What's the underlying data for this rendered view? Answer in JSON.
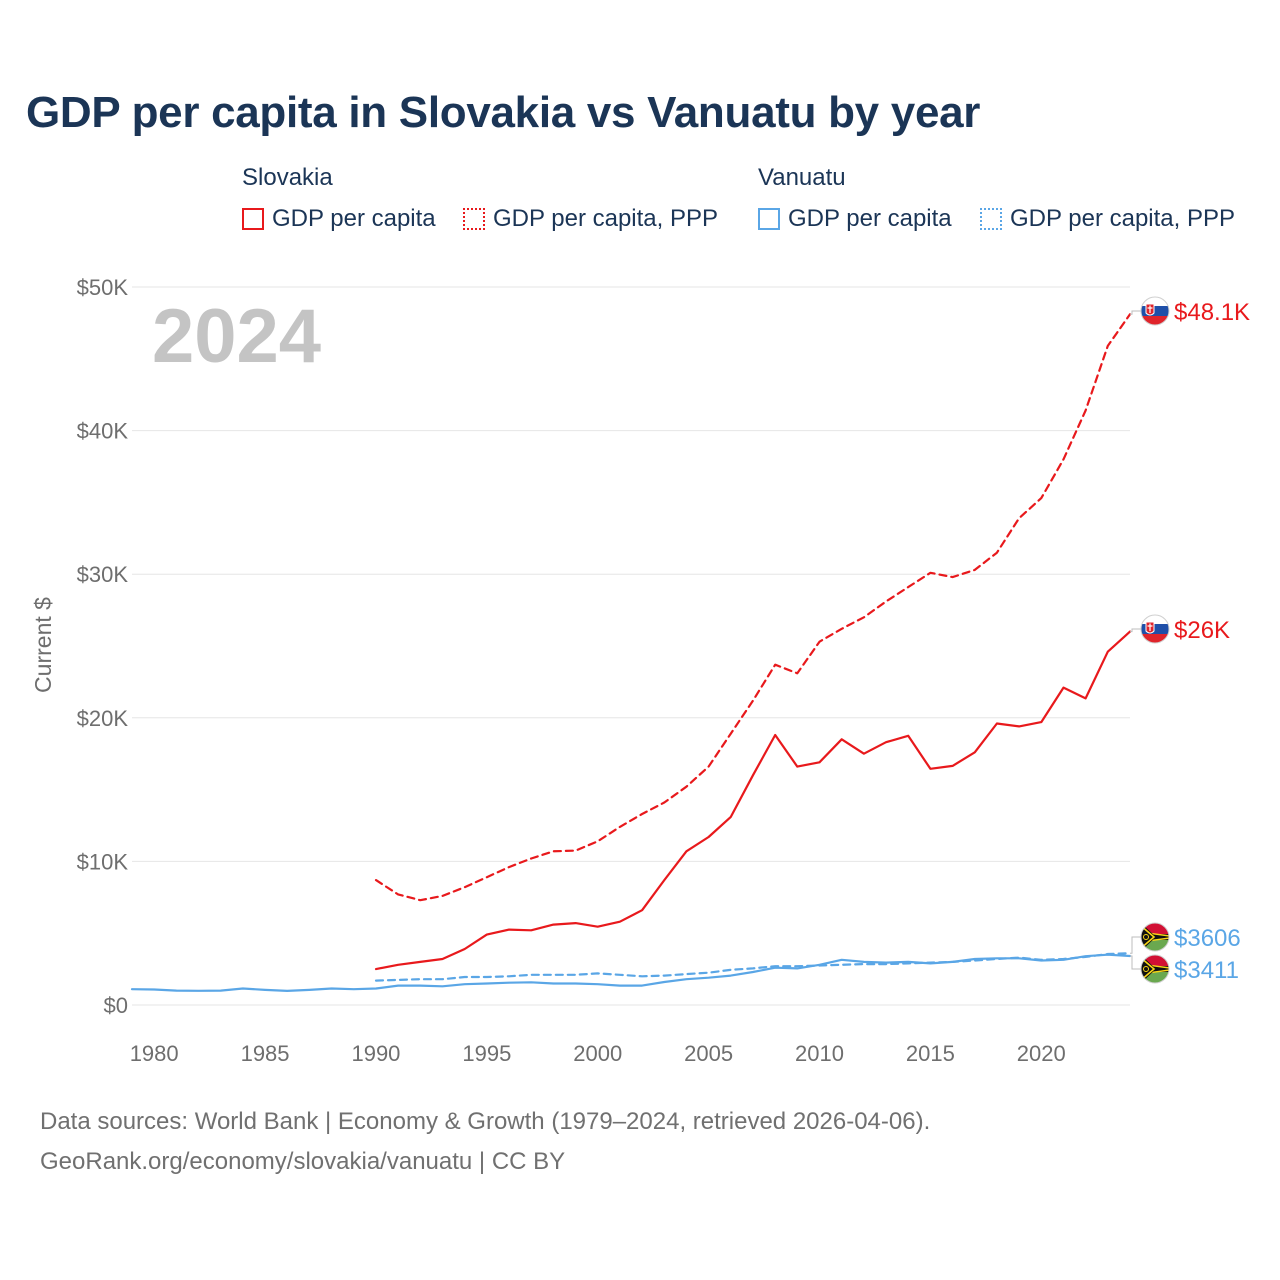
{
  "title": "GDP per capita in Slovakia vs Vanuatu by year",
  "legend": {
    "groups": [
      {
        "country": "Slovakia",
        "items": [
          {
            "label": "GDP per capita",
            "style": "solid",
            "color": "#e8191c"
          },
          {
            "label": "GDP per capita, PPP",
            "style": "dotted",
            "color": "#e8191c"
          }
        ]
      },
      {
        "country": "Vanuatu",
        "items": [
          {
            "label": "GDP per capita",
            "style": "solid",
            "color": "#5aa6e6"
          },
          {
            "label": "GDP per capita, PPP",
            "style": "dotted",
            "color": "#5aa6e6"
          }
        ]
      }
    ]
  },
  "year_watermark": "2024",
  "colors": {
    "slovakia": "#e8191c",
    "vanuatu": "#5aa6e6",
    "grid": "#e6e6e6",
    "title": "#1b3556",
    "muted": "#6e6e6e"
  },
  "chart_data": {
    "type": "line",
    "title": "GDP per capita in Slovakia vs Vanuatu by year",
    "xlabel": "",
    "ylabel": "Current $",
    "xlim": [
      1979,
      2024
    ],
    "ylim": [
      0,
      50000
    ],
    "grid": true,
    "x_ticks": [
      {
        "value": 1980,
        "label": "1980"
      },
      {
        "value": 1985,
        "label": "1985"
      },
      {
        "value": 1990,
        "label": "1990"
      },
      {
        "value": 1995,
        "label": "1995"
      },
      {
        "value": 2000,
        "label": "2000"
      },
      {
        "value": 2005,
        "label": "2005"
      },
      {
        "value": 2010,
        "label": "2010"
      },
      {
        "value": 2015,
        "label": "2015"
      },
      {
        "value": 2020,
        "label": "2020"
      }
    ],
    "y_ticks": [
      {
        "value": 0,
        "label": "$0"
      },
      {
        "value": 10000,
        "label": "$10K"
      },
      {
        "value": 20000,
        "label": "$20K"
      },
      {
        "value": 30000,
        "label": "$30K"
      },
      {
        "value": 40000,
        "label": "$40K"
      },
      {
        "value": 50000,
        "label": "$50K"
      }
    ],
    "series": [
      {
        "name": "Slovakia GDP per capita",
        "country": "Slovakia",
        "color": "#e8191c",
        "dash": false,
        "end_label": "$26K",
        "x": [
          1990,
          1991,
          1992,
          1993,
          1994,
          1995,
          1996,
          1997,
          1998,
          1999,
          2000,
          2001,
          2002,
          2003,
          2004,
          2005,
          2006,
          2007,
          2008,
          2009,
          2010,
          2011,
          2012,
          2013,
          2014,
          2015,
          2016,
          2017,
          2018,
          2019,
          2020,
          2021,
          2022,
          2023,
          2024
        ],
        "values": [
          2500,
          2800,
          3000,
          3200,
          3900,
          4900,
          5250,
          5200,
          5600,
          5700,
          5450,
          5800,
          6600,
          8700,
          10700,
          11700,
          13100,
          16000,
          18800,
          16600,
          16900,
          18500,
          17500,
          18300,
          18750,
          16450,
          16650,
          17600,
          19600,
          19400,
          19700,
          22100,
          21350,
          24600,
          26000
        ]
      },
      {
        "name": "Slovakia GDP per capita, PPP",
        "country": "Slovakia",
        "color": "#e8191c",
        "dash": true,
        "end_label": "$48.1K",
        "x": [
          1990,
          1991,
          1992,
          1993,
          1994,
          1995,
          1996,
          1997,
          1998,
          1999,
          2000,
          2001,
          2002,
          2003,
          2004,
          2005,
          2006,
          2007,
          2008,
          2009,
          2010,
          2011,
          2012,
          2013,
          2014,
          2015,
          2016,
          2017,
          2018,
          2019,
          2020,
          2021,
          2022,
          2023,
          2024
        ],
        "values": [
          8700,
          7700,
          7300,
          7600,
          8200,
          8900,
          9600,
          10200,
          10700,
          10750,
          11400,
          12400,
          13300,
          14100,
          15200,
          16600,
          18900,
          21200,
          23700,
          23100,
          25300,
          26200,
          27000,
          28100,
          29100,
          30100,
          29800,
          30300,
          31500,
          33900,
          35300,
          38000,
          41400,
          45900,
          48100
        ]
      },
      {
        "name": "Vanuatu GDP per capita",
        "country": "Vanuatu",
        "color": "#5aa6e6",
        "dash": false,
        "end_label": "$3411",
        "x": [
          1979,
          1980,
          1981,
          1982,
          1983,
          1984,
          1985,
          1986,
          1987,
          1988,
          1989,
          1990,
          1991,
          1992,
          1993,
          1994,
          1995,
          1996,
          1997,
          1998,
          1999,
          2000,
          2001,
          2002,
          2003,
          2004,
          2005,
          2006,
          2007,
          2008,
          2009,
          2010,
          2011,
          2012,
          2013,
          2014,
          2015,
          2016,
          2017,
          2018,
          2019,
          2020,
          2021,
          2022,
          2023,
          2024
        ],
        "values": [
          1100,
          1080,
          1000,
          990,
          1000,
          1150,
          1050,
          980,
          1050,
          1150,
          1100,
          1150,
          1350,
          1350,
          1300,
          1450,
          1500,
          1550,
          1580,
          1500,
          1500,
          1450,
          1350,
          1350,
          1600,
          1800,
          1900,
          2050,
          2300,
          2600,
          2550,
          2800,
          3150,
          3000,
          2950,
          3000,
          2900,
          3000,
          3200,
          3250,
          3250,
          3100,
          3150,
          3400,
          3500,
          3411
        ]
      },
      {
        "name": "Vanuatu GDP per capita, PPP",
        "country": "Vanuatu",
        "color": "#5aa6e6",
        "dash": true,
        "end_label": "$3606",
        "x": [
          1990,
          1991,
          1992,
          1993,
          1994,
          1995,
          1996,
          1997,
          1998,
          1999,
          2000,
          2001,
          2002,
          2003,
          2004,
          2005,
          2006,
          2007,
          2008,
          2009,
          2010,
          2011,
          2012,
          2013,
          2014,
          2015,
          2016,
          2017,
          2018,
          2019,
          2020,
          2021,
          2022,
          2023,
          2024
        ],
        "values": [
          1700,
          1750,
          1800,
          1800,
          1950,
          1950,
          2000,
          2100,
          2100,
          2100,
          2200,
          2100,
          2000,
          2050,
          2150,
          2250,
          2450,
          2550,
          2700,
          2700,
          2750,
          2800,
          2850,
          2850,
          2900,
          2950,
          3000,
          3100,
          3200,
          3300,
          3150,
          3200,
          3350,
          3550,
          3606
        ]
      }
    ]
  },
  "footer": {
    "line1": "Data sources: World Bank | Economy & Growth (1979–2024, retrieved 2026-04-06).",
    "line2": "GeoRank.org/economy/slovakia/vanuatu | CC BY"
  }
}
